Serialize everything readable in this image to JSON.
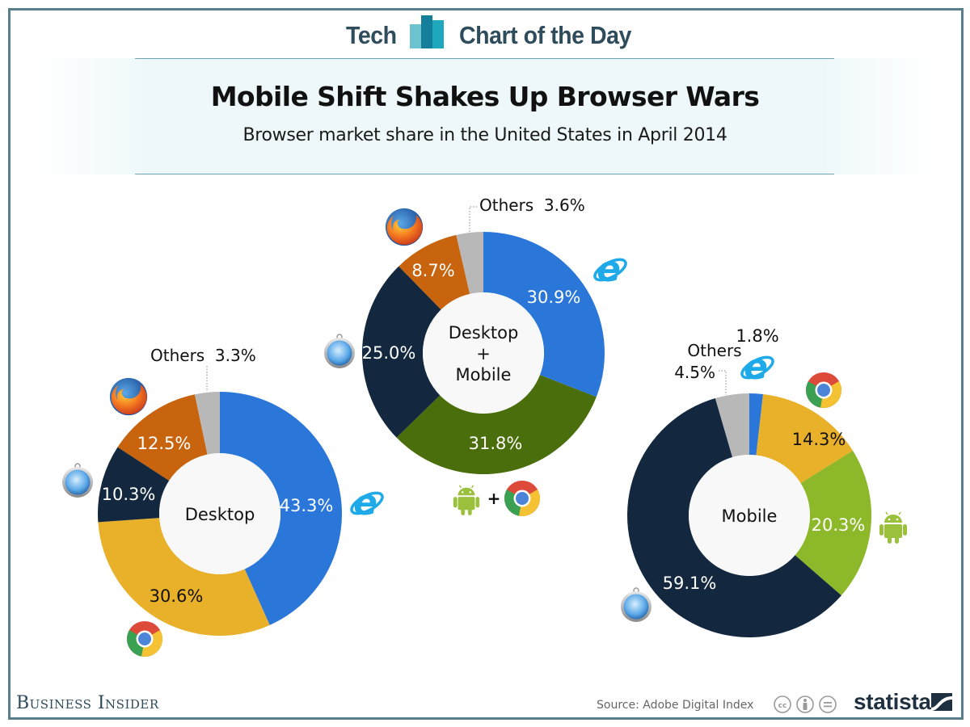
{
  "header": {
    "brand_left": "Tech",
    "brand_right": "Chart of the Day",
    "title": "Mobile Shift Shakes Up Browser Wars",
    "subtitle": "Browser market share in the United States in April 2014"
  },
  "footer": {
    "publisher": "Business Insider",
    "source": "Source: Adobe Digital Index",
    "license_icons": [
      "cc-icon",
      "attribution-icon",
      "no-derivatives-icon"
    ],
    "brand": "statista"
  },
  "colors": {
    "internet_explorer": "#2a77d9",
    "chrome": "#e9b02a",
    "safari": "#13283f",
    "firefox": "#c8640e",
    "others": "#b8b8b8",
    "android_plus_chrome": "#4a6e0b",
    "android": "#8cb82a",
    "center": "#f8f8f8",
    "frame": "#5a7d8b"
  },
  "chart_data": [
    {
      "type": "pie",
      "variant": "donut",
      "title": "Desktop",
      "center_label": [
        "Desktop"
      ],
      "slices": [
        {
          "label": "Internet Explorer",
          "icon": "internet-explorer-icon",
          "value": 43.3,
          "display": "43.3%",
          "color_key": "internet_explorer",
          "text_color": "#ffffff"
        },
        {
          "label": "Chrome",
          "icon": "chrome-icon",
          "value": 30.6,
          "display": "30.6%",
          "color_key": "chrome",
          "text_color": "#111111"
        },
        {
          "label": "Safari",
          "icon": "safari-icon",
          "value": 10.3,
          "display": "10.3%",
          "color_key": "safari",
          "text_color": "#ffffff"
        },
        {
          "label": "Firefox",
          "icon": "firefox-icon",
          "value": 12.5,
          "display": "12.5%",
          "color_key": "firefox",
          "text_color": "#ffffff"
        },
        {
          "label": "Others",
          "icon": null,
          "value": 3.3,
          "display": "Others  3.3%",
          "color_key": "others",
          "text_color": "#111111"
        }
      ]
    },
    {
      "type": "pie",
      "variant": "donut",
      "title": "Desktop + Mobile",
      "center_label": [
        "Desktop",
        "+",
        "Mobile"
      ],
      "slices": [
        {
          "label": "Internet Explorer",
          "icon": "internet-explorer-icon",
          "value": 30.9,
          "display": "30.9%",
          "color_key": "internet_explorer",
          "text_color": "#ffffff"
        },
        {
          "label": "Android + Chrome",
          "icon": "android-plus-chrome-icon",
          "value": 31.8,
          "display": "31.8%",
          "color_key": "android_plus_chrome",
          "text_color": "#ffffff"
        },
        {
          "label": "Safari",
          "icon": "safari-icon",
          "value": 25.0,
          "display": "25.0%",
          "color_key": "safari",
          "text_color": "#ffffff"
        },
        {
          "label": "Firefox",
          "icon": "firefox-icon",
          "value": 8.7,
          "display": "8.7%",
          "color_key": "firefox",
          "text_color": "#ffffff"
        },
        {
          "label": "Others",
          "icon": null,
          "value": 3.6,
          "display": "Others  3.6%",
          "color_key": "others",
          "text_color": "#111111"
        }
      ]
    },
    {
      "type": "pie",
      "variant": "donut",
      "title": "Mobile",
      "center_label": [
        "Mobile"
      ],
      "slices": [
        {
          "label": "Internet Explorer",
          "icon": "internet-explorer-icon",
          "value": 1.8,
          "display": "1.8%",
          "color_key": "internet_explorer",
          "text_color": "#111111"
        },
        {
          "label": "Chrome",
          "icon": "chrome-icon",
          "value": 14.3,
          "display": "14.3%",
          "color_key": "chrome",
          "text_color": "#111111"
        },
        {
          "label": "Android",
          "icon": "android-icon",
          "value": 20.3,
          "display": "20.3%",
          "color_key": "android",
          "text_color": "#ffffff"
        },
        {
          "label": "Safari",
          "icon": "safari-icon",
          "value": 59.1,
          "display": "59.1%",
          "color_key": "safari",
          "text_color": "#ffffff"
        },
        {
          "label": "Others",
          "icon": null,
          "value": 4.5,
          "display": [
            "Others",
            "4.5%"
          ],
          "color_key": "others",
          "text_color": "#111111"
        }
      ]
    }
  ]
}
